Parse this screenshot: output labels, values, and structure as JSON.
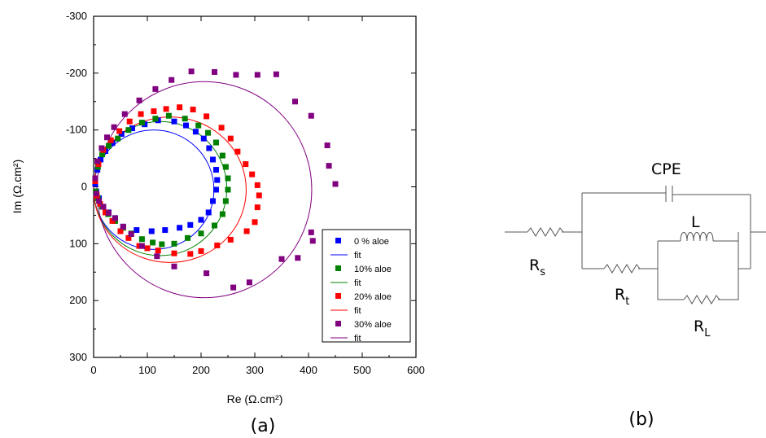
{
  "chart_data": {
    "type": "scatter",
    "xlabel": "Re (Ω.cm²)",
    "ylabel": "Im (Ω.cm²)",
    "xlim": [
      0,
      600
    ],
    "ylim": [
      -300,
      300
    ],
    "y_axis_inverted": true,
    "x_ticks": [
      "0",
      "100",
      "200",
      "300",
      "400",
      "500",
      "600"
    ],
    "y_ticks": [
      "-300",
      "-200",
      "-100",
      "0",
      "100",
      "200",
      "300"
    ],
    "legend_position": "bottom-right",
    "series": [
      {
        "name": "0 % aloe",
        "fit_name": "fit",
        "color": "#0000ff",
        "fit": {
          "cx": 112,
          "cy": 5,
          "rx": 112,
          "ry": 105
        },
        "points": [
          [
            3,
            -5
          ],
          [
            7,
            -30
          ],
          [
            13,
            -48
          ],
          [
            22,
            -63
          ],
          [
            35,
            -77
          ],
          [
            52,
            -93
          ],
          [
            72,
            -103
          ],
          [
            95,
            -110
          ],
          [
            120,
            -117
          ],
          [
            150,
            -115
          ],
          [
            172,
            -108
          ],
          [
            190,
            -97
          ],
          [
            205,
            -85
          ],
          [
            215,
            -68
          ],
          [
            222,
            -48
          ],
          [
            228,
            -30
          ],
          [
            230,
            -12
          ],
          [
            228,
            5
          ],
          [
            222,
            25
          ],
          [
            214,
            45
          ],
          [
            200,
            58
          ],
          [
            180,
            67
          ],
          [
            160,
            72
          ],
          [
            133,
            76
          ],
          [
            108,
            78
          ],
          [
            80,
            76
          ],
          [
            55,
            70
          ],
          [
            40,
            55
          ],
          [
            28,
            45
          ],
          [
            18,
            35
          ],
          [
            10,
            20
          ],
          [
            5,
            8
          ]
        ]
      },
      {
        "name": "10% aloe",
        "fit_name": "fit",
        "color": "#008000",
        "fit": {
          "cx": 124,
          "cy": 3,
          "rx": 124,
          "ry": 118
        },
        "points": [
          [
            3,
            -10
          ],
          [
            8,
            -35
          ],
          [
            16,
            -57
          ],
          [
            28,
            -72
          ],
          [
            45,
            -85
          ],
          [
            65,
            -100
          ],
          [
            90,
            -113
          ],
          [
            115,
            -120
          ],
          [
            140,
            -125
          ],
          [
            170,
            -120
          ],
          [
            195,
            -108
          ],
          [
            213,
            -95
          ],
          [
            228,
            -78
          ],
          [
            240,
            -55
          ],
          [
            246,
            -35
          ],
          [
            250,
            -15
          ],
          [
            250,
            5
          ],
          [
            246,
            25
          ],
          [
            240,
            48
          ],
          [
            225,
            68
          ],
          [
            200,
            82
          ],
          [
            175,
            90
          ],
          [
            150,
            100
          ],
          [
            127,
            101
          ],
          [
            110,
            98
          ],
          [
            90,
            92
          ],
          [
            70,
            82
          ],
          [
            55,
            72
          ],
          [
            40,
            60
          ],
          [
            27,
            48
          ],
          [
            16,
            35
          ],
          [
            8,
            20
          ],
          [
            4,
            8
          ]
        ]
      },
      {
        "name": "20% aloe",
        "fit_name": "fit",
        "color": "#ff0000",
        "fit": {
          "cx": 142,
          "cy": 5,
          "rx": 142,
          "ry": 128
        },
        "points": [
          [
            3,
            -10
          ],
          [
            9,
            -40
          ],
          [
            18,
            -65
          ],
          [
            32,
            -82
          ],
          [
            48,
            -98
          ],
          [
            67,
            -115
          ],
          [
            88,
            -128
          ],
          [
            112,
            -133
          ],
          [
            135,
            -137
          ],
          [
            160,
            -140
          ],
          [
            185,
            -136
          ],
          [
            210,
            -124
          ],
          [
            238,
            -104
          ],
          [
            255,
            -85
          ],
          [
            268,
            -62
          ],
          [
            283,
            -40
          ],
          [
            295,
            -22
          ],
          [
            305,
            -3
          ],
          [
            308,
            15
          ],
          [
            305,
            36
          ],
          [
            300,
            62
          ],
          [
            285,
            78
          ],
          [
            255,
            93
          ],
          [
            230,
            103
          ],
          [
            200,
            113
          ],
          [
            180,
            118
          ],
          [
            150,
            117
          ],
          [
            120,
            112
          ],
          [
            100,
            108
          ],
          [
            85,
            104
          ],
          [
            65,
            90
          ],
          [
            50,
            78
          ],
          [
            35,
            60
          ],
          [
            22,
            45
          ],
          [
            12,
            30
          ],
          [
            6,
            15
          ]
        ]
      },
      {
        "name": "30% aloe",
        "fit_name": "fit",
        "color": "#800080",
        "fit": {
          "cx": 206,
          "cy": 5,
          "rx": 200,
          "ry": 190
        },
        "points": [
          [
            3,
            -15
          ],
          [
            7,
            -45
          ],
          [
            15,
            -68
          ],
          [
            25,
            -87
          ],
          [
            38,
            -105
          ],
          [
            58,
            -128
          ],
          [
            85,
            -152
          ],
          [
            115,
            -172
          ],
          [
            145,
            -188
          ],
          [
            182,
            -203
          ],
          [
            225,
            -202
          ],
          [
            265,
            -197
          ],
          [
            305,
            -197
          ],
          [
            340,
            -198
          ],
          [
            375,
            -150
          ],
          [
            405,
            -125
          ],
          [
            435,
            -73
          ],
          [
            438,
            -37
          ],
          [
            450,
            -5
          ],
          [
            408,
            95
          ],
          [
            405,
            80
          ],
          [
            380,
            125
          ],
          [
            350,
            127
          ],
          [
            290,
            168
          ],
          [
            260,
            177
          ],
          [
            210,
            152
          ],
          [
            150,
            140
          ],
          [
            118,
            122
          ],
          [
            90,
            104
          ],
          [
            70,
            83
          ],
          [
            55,
            70
          ],
          [
            40,
            55
          ],
          [
            28,
            46
          ],
          [
            18,
            35
          ],
          [
            10,
            25
          ],
          [
            5,
            12
          ]
        ]
      }
    ]
  },
  "captions": {
    "a": "(a)",
    "b": "(b)"
  },
  "circuit": {
    "cpe": "CPE",
    "inductor": "L",
    "rs_main": "R",
    "rs_sub": "s",
    "rt_main": "R",
    "rt_sub": "t",
    "rl_main": "R",
    "rl_sub": "L"
  }
}
